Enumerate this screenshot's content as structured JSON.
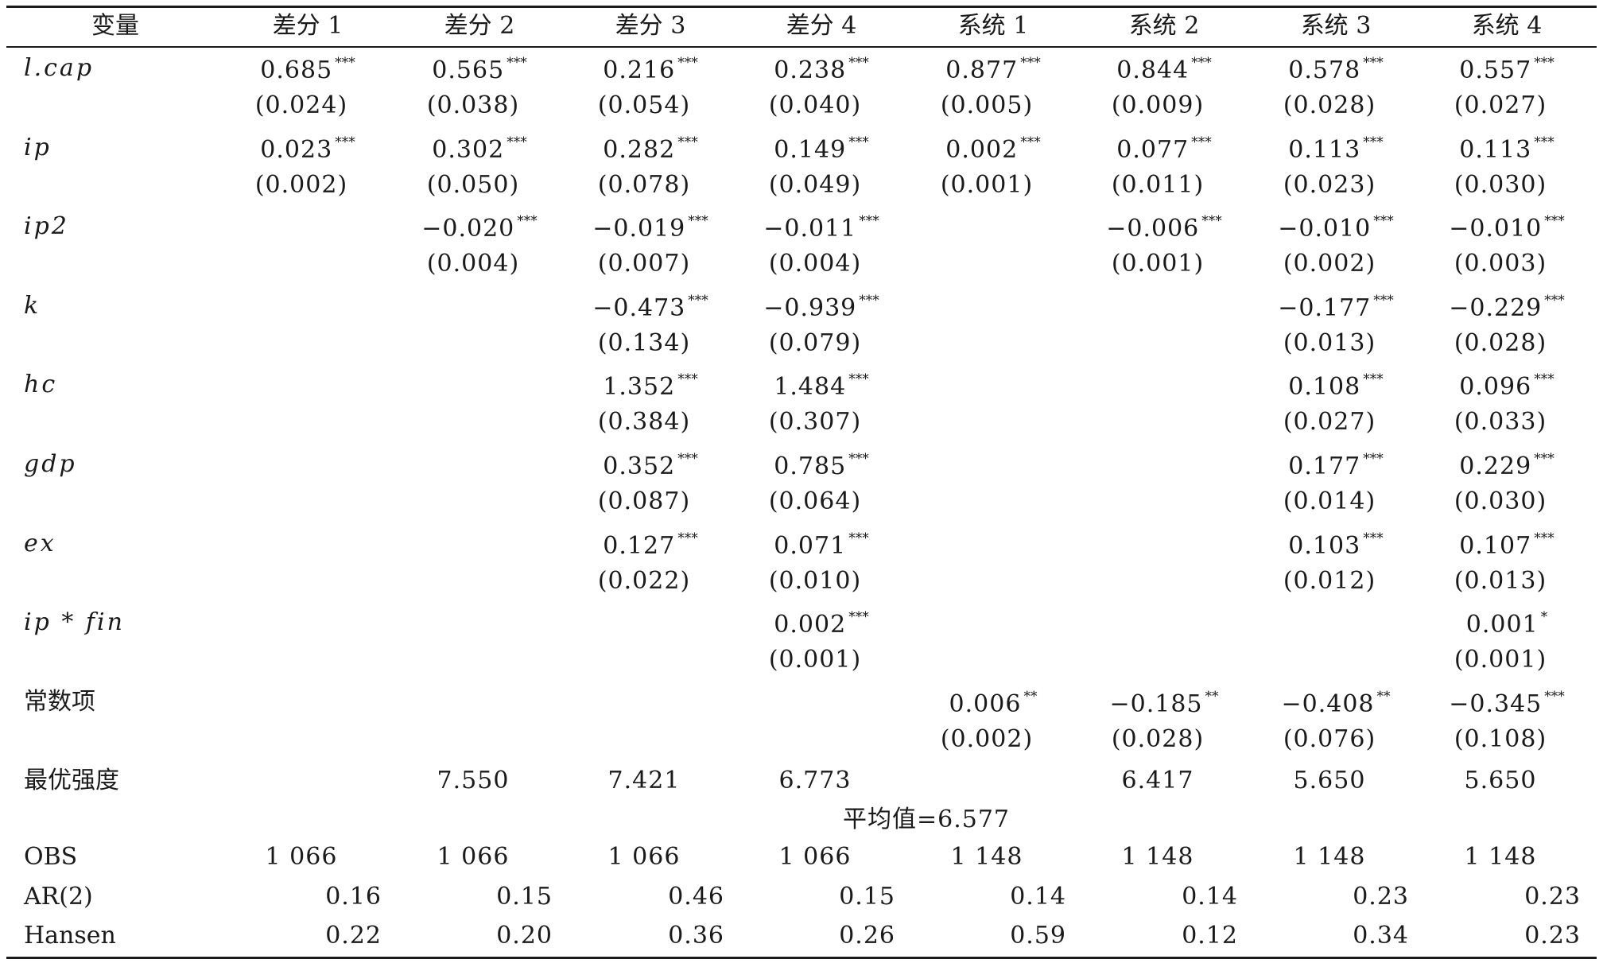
{
  "table": {
    "headers": [
      "变量",
      "差分 1",
      "差分 2",
      "差分 3",
      "差分 4",
      "系统 1",
      "系统 2",
      "系统 3",
      "系统 4"
    ],
    "rows": [
      {
        "var": "l.cap",
        "coef": [
          {
            "v": "0.685",
            "s": "***"
          },
          {
            "v": "0.565",
            "s": "***"
          },
          {
            "v": "0.216",
            "s": "***"
          },
          {
            "v": "0.238",
            "s": "***"
          },
          {
            "v": "0.877",
            "s": "***"
          },
          {
            "v": "0.844",
            "s": "***"
          },
          {
            "v": "0.578",
            "s": "***"
          },
          {
            "v": "0.557",
            "s": "***"
          }
        ],
        "se": [
          "(0.024)",
          "(0.038)",
          "(0.054)",
          "(0.040)",
          "(0.005)",
          "(0.009)",
          "(0.028)",
          "(0.027)"
        ]
      },
      {
        "var": "ip",
        "coef": [
          {
            "v": "0.023",
            "s": "***"
          },
          {
            "v": "0.302",
            "s": "***"
          },
          {
            "v": "0.282",
            "s": "***"
          },
          {
            "v": "0.149",
            "s": "***"
          },
          {
            "v": "0.002",
            "s": "***"
          },
          {
            "v": "0.077",
            "s": "***"
          },
          {
            "v": "0.113",
            "s": "***"
          },
          {
            "v": "0.113",
            "s": "***"
          }
        ],
        "se": [
          "(0.002)",
          "(0.050)",
          "(0.078)",
          "(0.049)",
          "(0.001)",
          "(0.011)",
          "(0.023)",
          "(0.030)"
        ]
      },
      {
        "var": "ip2",
        "coef": [
          {
            "v": "",
            "s": ""
          },
          {
            "v": "−0.020",
            "s": "***"
          },
          {
            "v": "−0.019",
            "s": "***"
          },
          {
            "v": "−0.011",
            "s": "***"
          },
          {
            "v": "",
            "s": ""
          },
          {
            "v": "−0.006",
            "s": "***"
          },
          {
            "v": "−0.010",
            "s": "***"
          },
          {
            "v": "−0.010",
            "s": "***"
          }
        ],
        "se": [
          "",
          "(0.004)",
          "(0.007)",
          "(0.004)",
          "",
          "(0.001)",
          "(0.002)",
          "(0.003)"
        ]
      },
      {
        "var": "k",
        "coef": [
          {
            "v": "",
            "s": ""
          },
          {
            "v": "",
            "s": ""
          },
          {
            "v": "−0.473",
            "s": "***"
          },
          {
            "v": "−0.939",
            "s": "***"
          },
          {
            "v": "",
            "s": ""
          },
          {
            "v": "",
            "s": ""
          },
          {
            "v": "−0.177",
            "s": "***"
          },
          {
            "v": "−0.229",
            "s": "***"
          }
        ],
        "se": [
          "",
          "",
          "(0.134)",
          "(0.079)",
          "",
          "",
          "(0.013)",
          "(0.028)"
        ]
      },
      {
        "var": "hc",
        "coef": [
          {
            "v": "",
            "s": ""
          },
          {
            "v": "",
            "s": ""
          },
          {
            "v": "1.352",
            "s": "***"
          },
          {
            "v": "1.484",
            "s": "***"
          },
          {
            "v": "",
            "s": ""
          },
          {
            "v": "",
            "s": ""
          },
          {
            "v": "0.108",
            "s": "***"
          },
          {
            "v": "0.096",
            "s": "***"
          }
        ],
        "se": [
          "",
          "",
          "(0.384)",
          "(0.307)",
          "",
          "",
          "(0.027)",
          "(0.033)"
        ]
      },
      {
        "var": "gdp",
        "coef": [
          {
            "v": "",
            "s": ""
          },
          {
            "v": "",
            "s": ""
          },
          {
            "v": "0.352",
            "s": "***"
          },
          {
            "v": "0.785",
            "s": "***"
          },
          {
            "v": "",
            "s": ""
          },
          {
            "v": "",
            "s": ""
          },
          {
            "v": "0.177",
            "s": "***"
          },
          {
            "v": "0.229",
            "s": "***"
          }
        ],
        "se": [
          "",
          "",
          "(0.087)",
          "(0.064)",
          "",
          "",
          "(0.014)",
          "(0.030)"
        ]
      },
      {
        "var": "ex",
        "coef": [
          {
            "v": "",
            "s": ""
          },
          {
            "v": "",
            "s": ""
          },
          {
            "v": "0.127",
            "s": "***"
          },
          {
            "v": "0.071",
            "s": "***"
          },
          {
            "v": "",
            "s": ""
          },
          {
            "v": "",
            "s": ""
          },
          {
            "v": "0.103",
            "s": "***"
          },
          {
            "v": "0.107",
            "s": "***"
          }
        ],
        "se": [
          "",
          "",
          "(0.022)",
          "(0.010)",
          "",
          "",
          "(0.012)",
          "(0.013)"
        ]
      },
      {
        "var": "ip * fin",
        "coef": [
          {
            "v": "",
            "s": ""
          },
          {
            "v": "",
            "s": ""
          },
          {
            "v": "",
            "s": ""
          },
          {
            "v": "0.002",
            "s": "***"
          },
          {
            "v": "",
            "s": ""
          },
          {
            "v": "",
            "s": ""
          },
          {
            "v": "",
            "s": ""
          },
          {
            "v": "0.001",
            "s": "*"
          }
        ],
        "se": [
          "",
          "",
          "",
          "(0.001)",
          "",
          "",
          "",
          "(0.001)"
        ]
      },
      {
        "var": "常数项",
        "coef": [
          {
            "v": "",
            "s": ""
          },
          {
            "v": "",
            "s": ""
          },
          {
            "v": "",
            "s": ""
          },
          {
            "v": "",
            "s": ""
          },
          {
            "v": "0.006",
            "s": "**"
          },
          {
            "v": "−0.185",
            "s": "**"
          },
          {
            "v": "−0.408",
            "s": "**"
          },
          {
            "v": "−0.345",
            "s": "***"
          }
        ],
        "se": [
          "",
          "",
          "",
          "",
          "(0.002)",
          "(0.028)",
          "(0.076)",
          "(0.108)"
        ]
      }
    ],
    "optimal": {
      "label": "最优强度",
      "values": [
        "",
        "7.550",
        "7.421",
        "6.773",
        "",
        "6.417",
        "5.650",
        "5.650"
      ],
      "mean_text": "平均值=6.577"
    },
    "stats": [
      {
        "label": "OBS",
        "values": [
          "1 066",
          "1 066",
          "1 066",
          "1 066",
          "1 148",
          "1 148",
          "1 148",
          "1 148"
        ]
      },
      {
        "label": "AR(2)",
        "values": [
          "0.16",
          "0.15",
          "0.46",
          "0.15",
          "0.14",
          "0.14",
          "0.23",
          "0.23"
        ]
      },
      {
        "label": "Hansen",
        "values": [
          "0.22",
          "0.20",
          "0.36",
          "0.26",
          "0.59",
          "0.12",
          "0.34",
          "0.23"
        ]
      }
    ]
  }
}
